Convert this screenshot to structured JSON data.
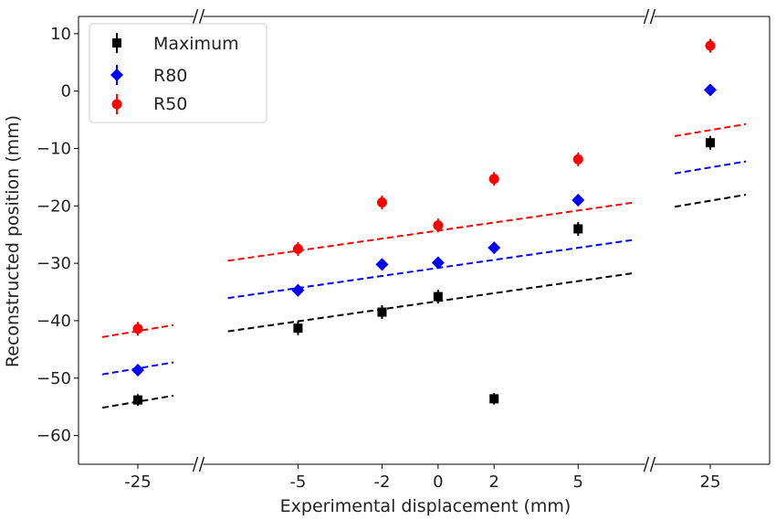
{
  "chart_data": {
    "type": "scatter",
    "xlabel": "Experimental displacement (mm)",
    "ylabel": "Reconstructed position (mm)",
    "ylim": [
      -65,
      13
    ],
    "yticks": [
      10,
      0,
      -10,
      -20,
      -30,
      -40,
      -50,
      -60
    ],
    "ytick_labels": [
      "10",
      "0",
      "−10",
      "−20",
      "−30",
      "−40",
      "−50",
      "−60"
    ],
    "broken_x_axis": true,
    "panels": [
      {
        "xlim": [
          -27.5,
          -22.5
        ],
        "xticks": [
          -25
        ],
        "xtick_labels": [
          "-25"
        ]
      },
      {
        "xlim": [
          -8.5,
          7.5
        ],
        "xticks": [
          -5,
          -2,
          0,
          2,
          5
        ],
        "xtick_labels": [
          "-5",
          "-2",
          "0",
          "2",
          "5"
        ]
      },
      {
        "xlim": [
          22.5,
          27.5
        ],
        "xticks": [
          25
        ],
        "xtick_labels": [
          "25"
        ]
      }
    ],
    "legend": {
      "placement": "top-left",
      "entries": [
        "Maximum",
        "R80",
        "R50"
      ]
    },
    "grid": false,
    "series": [
      {
        "name": "Maximum",
        "color": "#000000",
        "marker": "square",
        "points": [
          {
            "x": -25,
            "y": -53.8,
            "err": 1.0
          },
          {
            "x": -5,
            "y": -41.3,
            "err": 1.2
          },
          {
            "x": -2,
            "y": -38.5,
            "err": 1.2
          },
          {
            "x": 0,
            "y": -35.8,
            "err": 1.2
          },
          {
            "x": 2,
            "y": -53.6,
            "err": 1.0
          },
          {
            "x": 5,
            "y": -24.0,
            "err": 1.2
          },
          {
            "x": 25,
            "y": -9.0,
            "err": 1.2
          }
        ],
        "fit": {
          "slope": 0.7,
          "intercept": -36.6
        }
      },
      {
        "name": "R80",
        "color": "#0000ff",
        "marker": "diamond",
        "points": [
          {
            "x": -25,
            "y": -48.6,
            "err": 1.0
          },
          {
            "x": -5,
            "y": -34.7,
            "err": 1.0
          },
          {
            "x": -2,
            "y": -30.2,
            "err": 1.0
          },
          {
            "x": 0,
            "y": -29.9,
            "err": 1.0
          },
          {
            "x": 2,
            "y": -27.3,
            "err": 1.0
          },
          {
            "x": 5,
            "y": -19.0,
            "err": 1.0
          },
          {
            "x": 25,
            "y": 0.2,
            "err": 1.0
          }
        ],
        "fit": {
          "slope": 0.7,
          "intercept": -30.8
        }
      },
      {
        "name": "R50",
        "color": "#ff0000",
        "marker": "circle",
        "points": [
          {
            "x": -25,
            "y": -41.4,
            "err": 1.2
          },
          {
            "x": -5,
            "y": -27.5,
            "err": 1.2
          },
          {
            "x": -2,
            "y": -19.4,
            "err": 1.2
          },
          {
            "x": 0,
            "y": -23.4,
            "err": 1.2
          },
          {
            "x": 2,
            "y": -15.3,
            "err": 1.2
          },
          {
            "x": 5,
            "y": -11.9,
            "err": 1.2
          },
          {
            "x": 25,
            "y": 7.9,
            "err": 1.2
          }
        ],
        "fit": {
          "slope": 0.7,
          "intercept": -24.3
        }
      }
    ]
  }
}
